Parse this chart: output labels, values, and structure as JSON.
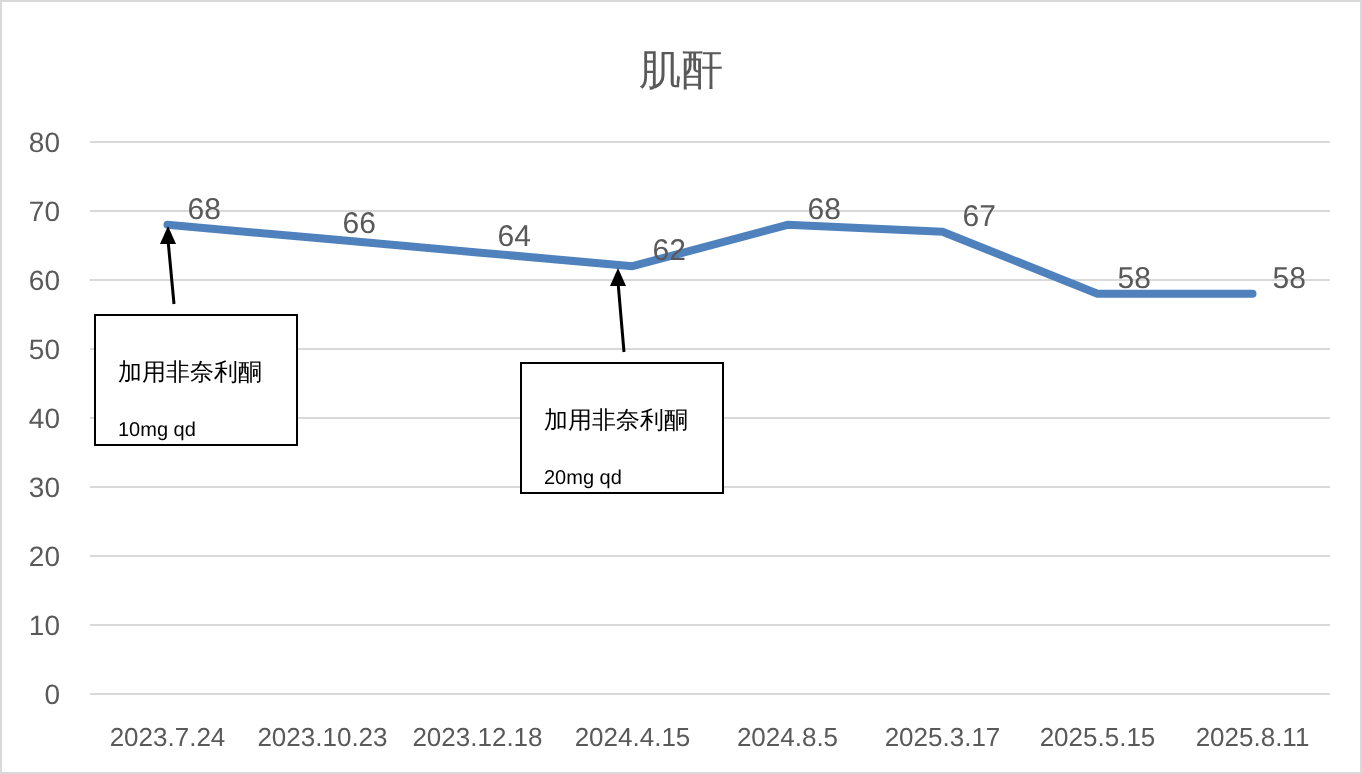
{
  "chart_data": {
    "type": "line",
    "title": "肌酐",
    "categories": [
      "2023.7.24",
      "2023.10.23",
      "2023.12.18",
      "2024.4.15",
      "2024.8.5",
      "2025.3.17",
      "2025.5.15",
      "2025.8.11"
    ],
    "series": [
      {
        "color": "#4f81bd",
        "values": [
          68,
          66,
          64,
          62,
          68,
          67,
          58,
          58
        ]
      }
    ],
    "ylim": [
      0,
      80
    ],
    "yticks": [
      0,
      10,
      20,
      30,
      40,
      50,
      60,
      70,
      80
    ],
    "grid": "y",
    "data_labels": true,
    "marker": "none",
    "annotations": [
      "加用非奈利酮\n10mg qd",
      "加用非奈利酮\n20mg qd"
    ]
  }
}
